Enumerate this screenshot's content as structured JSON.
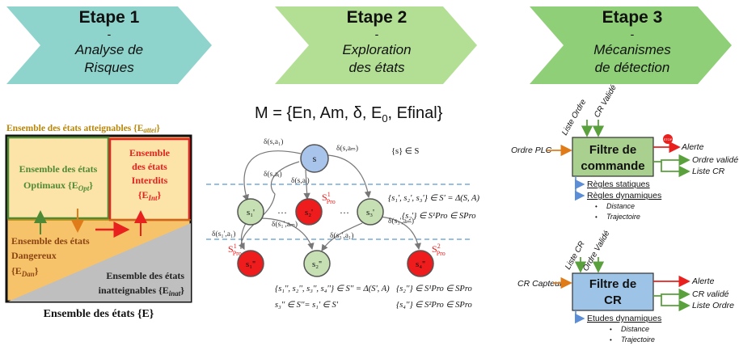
{
  "steps": [
    {
      "title": "Etape 1",
      "dash": "-",
      "line1": "Analyse de",
      "line2": "Risques",
      "color": "#8fd4cc"
    },
    {
      "title": "Etape 2",
      "dash": "-",
      "line1": "Exploration",
      "line2": "des états",
      "color": "#b3df95"
    },
    {
      "title": "Etape 3",
      "dash": "-",
      "line1": "Mécanismes",
      "line2": "de détection",
      "color": "#8fcf78"
    }
  ],
  "risk": {
    "top_label": "Ensemble des états atteignables {E",
    "top_sub": "attei",
    "optimal_line1": "Ensemble des états",
    "optimal_line2": "Optimaux {E",
    "optimal_sub": "Opt",
    "forbidden_line1": "Ensemble",
    "forbidden_line2": "des états",
    "forbidden_line3": "Interdits",
    "forbidden_line4": "{E",
    "forbidden_sub": "Int",
    "danger_line1": "Ensemble des états",
    "danger_line2": "Dangereux",
    "danger_line3": "{E",
    "danger_sub": "Dan",
    "unreach_line1": "Ensemble des états",
    "unreach_line2": "inatteignables {E",
    "unreach_sub": "inat",
    "bottom_label": "Ensemble des états {E}",
    "colors": {
      "orange": "#f7c36a",
      "green_border": "#4e8a35",
      "red": "#e8201e",
      "gray": "#bfbfbf",
      "gold": "#b8860b"
    }
  },
  "model": {
    "formula": "M = {En, Am, δ, E",
    "formula_sub": "0",
    "formula_end": ", Efinal}",
    "s_set": "{s} ∈ S",
    "edge_labels": [
      "δ(s,a₁)",
      "δ(s,aᵢ)",
      "δ(s,aₘ)",
      "δ(s,aᵢ)",
      "δ(s₁',a₁)",
      "δ(s₁',aₘ)",
      "δ(s₃',a₁)",
      "δ(s₃',aₘ)"
    ],
    "dots": "…",
    "nodes": {
      "s": "s",
      "s1p": "s₁'",
      "s2p": "s₂'",
      "s3p": "s₃'",
      "s1pp": "s₁''",
      "s2pp": "s₂''",
      "s4pp": "s₄''"
    },
    "spro1": "S",
    "spro1_sup": "1",
    "spro1_sub": "Pro",
    "spro2_sup": "2",
    "eq1": "{s₁', s₂', s₃'} ∈ S' = Δ(S, A)",
    "eq2": "{s₂'} ∈ S¹Pro ∈ SPro",
    "eq3": "{s₁'', s₂'', s₃'', s₄''} ∈ S'' = Δ(S', A)",
    "eq4": "{s₂''} ∈ S¹Pro ∈ SPro",
    "eq5": "s₃'' ∈ S''= s₁' ∈ S'",
    "eq6": "{s₄''} ∈ S²Pro ∈ SPro",
    "colors": {
      "node_blue": "#a9c4eb",
      "node_green": "#c6e0b4",
      "node_red": "#ee1c1c"
    }
  },
  "filters": {
    "cmd": {
      "title_line1": "Filtre de",
      "title_line2": "commande",
      "in_top1": "Liste Ordre",
      "in_top2": "CR Validé",
      "in_left": "Ordre PLC",
      "out_alert": "Alerte",
      "out1": "Ordre validé",
      "out2": "Liste CR",
      "rule1": "Règles statiques",
      "rule2": "Règles dynamiques",
      "bullet1": "Distance",
      "bullet2": "Trajectoire",
      "stop": "STOP",
      "fill": "#a9d08e"
    },
    "cr": {
      "title_line1": "Filtre de",
      "title_line2": "CR",
      "in_top1": "Liste CR",
      "in_top2": "Ordre Validé",
      "in_left": "CR Capteurs",
      "out_alert": "Alerte",
      "out1": "CR validé",
      "out2": "Liste Ordre",
      "rule1": "Etudes dynamiques",
      "bullet1": "Distance",
      "bullet2": "Trajectoire",
      "fill": "#9dc3e6"
    }
  }
}
